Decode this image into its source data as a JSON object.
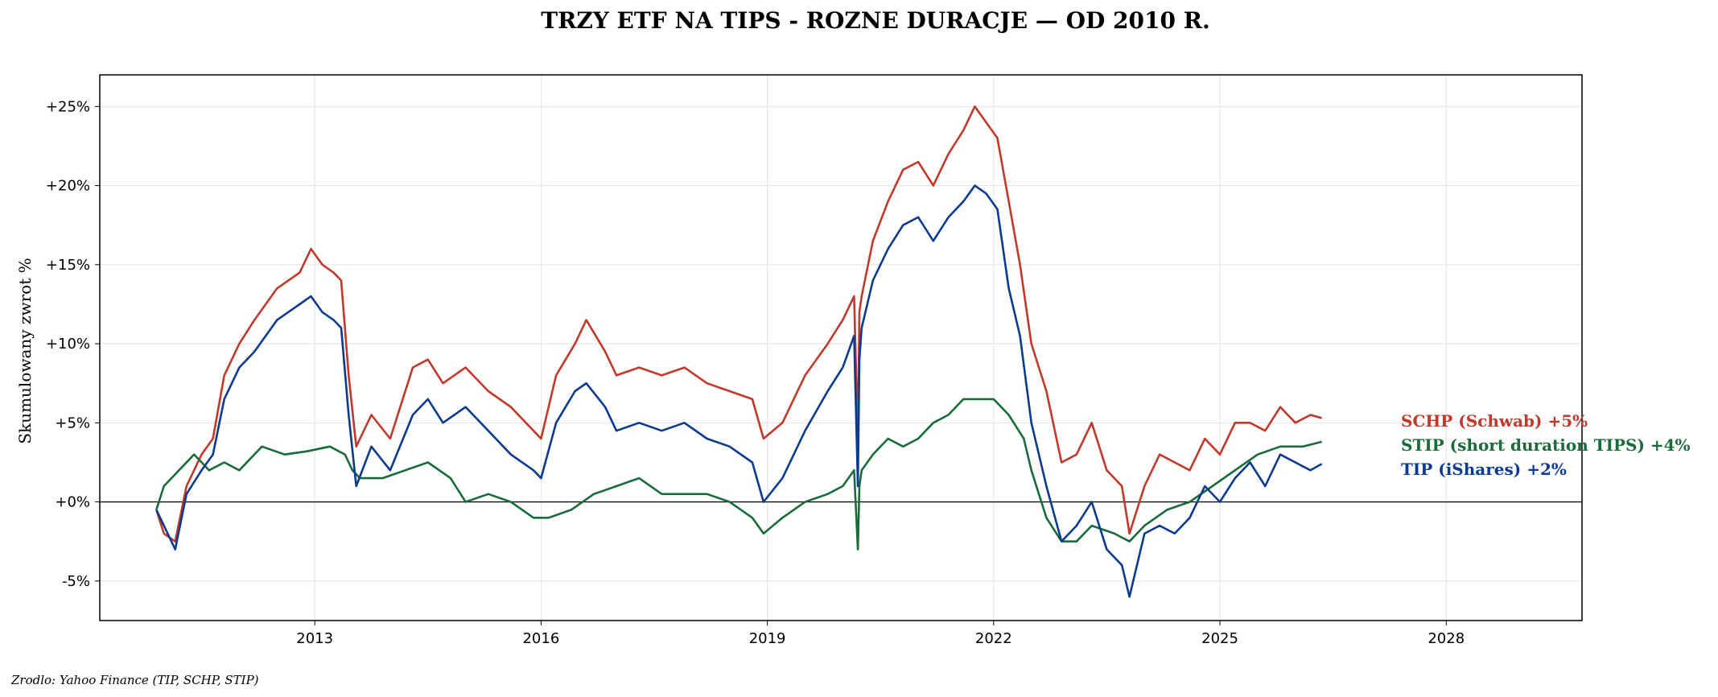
{
  "chart_data": {
    "type": "line",
    "title": "TRZY ETF NA TIPS - ROZNE DURACJE — OD 2010 R.",
    "ylabel": "Skumulowany zwrot %",
    "xlabel": "",
    "source": "Zrodlo: Yahoo Finance (TIP, SCHP, STIP)",
    "xlim": [
      2010.15,
      2029.8
    ],
    "ylim": [
      -7.5,
      27
    ],
    "x_ticks": [
      2013,
      2016,
      2019,
      2022,
      2025,
      2028
    ],
    "x_tick_labels": [
      "2013",
      "2016",
      "2019",
      "2022",
      "2025",
      "2028"
    ],
    "y_ticks": [
      -5,
      0,
      5,
      10,
      15,
      20,
      25
    ],
    "y_tick_labels": [
      "-5%",
      "+0%",
      "+5%",
      "+10%",
      "+15%",
      "+20%",
      "+25%"
    ],
    "grid": true,
    "zero_line": true,
    "legend_position": "right",
    "series": [
      {
        "name": "SCHP (Schwab)",
        "label": "SCHP (Schwab)  +5%",
        "color": "#C0392B",
        "x": [
          2010.9,
          2011.0,
          2011.15,
          2011.3,
          2011.5,
          2011.65,
          2011.8,
          2012.0,
          2012.2,
          2012.5,
          2012.8,
          2012.95,
          2013.1,
          2013.25,
          2013.35,
          2013.45,
          2013.55,
          2013.75,
          2014.0,
          2014.3,
          2014.5,
          2014.7,
          2015.0,
          2015.3,
          2015.6,
          2015.9,
          2016.0,
          2016.2,
          2016.45,
          2016.6,
          2016.85,
          2017.0,
          2017.3,
          2017.6,
          2017.9,
          2018.2,
          2018.5,
          2018.8,
          2018.95,
          2019.2,
          2019.5,
          2019.8,
          2020.0,
          2020.15,
          2020.2,
          2020.22,
          2020.25,
          2020.4,
          2020.6,
          2020.8,
          2021.0,
          2021.2,
          2021.4,
          2021.6,
          2021.75,
          2021.9,
          2022.05,
          2022.2,
          2022.35,
          2022.5,
          2022.7,
          2022.9,
          2023.1,
          2023.3,
          2023.5,
          2023.7,
          2023.8,
          2024.0,
          2024.2,
          2024.4,
          2024.6,
          2024.8,
          2025.0,
          2025.2,
          2025.4,
          2025.6,
          2025.8,
          2026.0,
          2026.2,
          2026.35
        ],
        "values": [
          -0.5,
          -2.0,
          -2.5,
          1.0,
          3.0,
          4.0,
          8.0,
          10.0,
          11.5,
          13.5,
          14.5,
          16.0,
          15.0,
          14.5,
          14.0,
          8.0,
          3.5,
          5.5,
          4.0,
          8.5,
          9.0,
          7.5,
          8.5,
          7.0,
          6.0,
          4.5,
          4.0,
          8.0,
          10.0,
          11.5,
          9.5,
          8.0,
          8.5,
          8.0,
          8.5,
          7.5,
          7.0,
          6.5,
          4.0,
          5.0,
          8.0,
          10.0,
          11.5,
          13.0,
          4.0,
          12.0,
          13.0,
          16.5,
          19.0,
          21.0,
          21.5,
          20.0,
          22.0,
          23.5,
          25.0,
          24.0,
          23.0,
          19.0,
          15.0,
          10.0,
          7.0,
          2.5,
          3.0,
          5.0,
          2.0,
          1.0,
          -2.0,
          1.0,
          3.0,
          2.5,
          2.0,
          4.0,
          3.0,
          5.0,
          5.0,
          4.5,
          6.0,
          5.0,
          5.5,
          5.3
        ]
      },
      {
        "name": "STIP (short duration TIPS)",
        "label": "STIP (short duration TIPS)  +4%",
        "color": "#1A6B3A",
        "x": [
          2010.9,
          2011.0,
          2011.2,
          2011.4,
          2011.6,
          2011.8,
          2012.0,
          2012.3,
          2012.6,
          2012.9,
          2013.2,
          2013.4,
          2013.5,
          2013.6,
          2013.9,
          2014.2,
          2014.5,
          2014.8,
          2015.0,
          2015.3,
          2015.6,
          2015.9,
          2016.1,
          2016.4,
          2016.7,
          2017.0,
          2017.3,
          2017.6,
          2017.9,
          2018.2,
          2018.5,
          2018.8,
          2018.95,
          2019.2,
          2019.5,
          2019.8,
          2020.0,
          2020.15,
          2020.2,
          2020.22,
          2020.25,
          2020.4,
          2020.6,
          2020.8,
          2021.0,
          2021.2,
          2021.4,
          2021.6,
          2021.8,
          2022.0,
          2022.2,
          2022.4,
          2022.5,
          2022.7,
          2022.9,
          2023.1,
          2023.3,
          2023.6,
          2023.8,
          2024.0,
          2024.3,
          2024.6,
          2024.9,
          2025.2,
          2025.5,
          2025.8,
          2026.1,
          2026.35
        ],
        "values": [
          -0.5,
          1.0,
          2.0,
          3.0,
          2.0,
          2.5,
          2.0,
          3.5,
          3.0,
          3.2,
          3.5,
          3.0,
          2.0,
          1.5,
          1.5,
          2.0,
          2.5,
          1.5,
          0.0,
          0.5,
          0.0,
          -1.0,
          -1.0,
          -0.5,
          0.5,
          1.0,
          1.5,
          0.5,
          0.5,
          0.5,
          0.0,
          -1.0,
          -2.0,
          -1.0,
          0.0,
          0.5,
          1.0,
          2.0,
          -3.0,
          1.0,
          2.0,
          3.0,
          4.0,
          3.5,
          4.0,
          5.0,
          5.5,
          6.5,
          6.5,
          6.5,
          5.5,
          4.0,
          2.0,
          -1.0,
          -2.5,
          -2.5,
          -1.5,
          -2.0,
          -2.5,
          -1.5,
          -0.5,
          0.0,
          1.0,
          2.0,
          3.0,
          3.5,
          3.5,
          3.8
        ]
      },
      {
        "name": "TIP (iShares)",
        "label": "TIP (iShares)  +2%",
        "color": "#0B3A8E",
        "x": [
          2010.9,
          2011.0,
          2011.15,
          2011.3,
          2011.5,
          2011.65,
          2011.8,
          2012.0,
          2012.2,
          2012.5,
          2012.8,
          2012.95,
          2013.1,
          2013.25,
          2013.35,
          2013.45,
          2013.55,
          2013.75,
          2014.0,
          2014.3,
          2014.5,
          2014.7,
          2015.0,
          2015.3,
          2015.6,
          2015.9,
          2016.0,
          2016.2,
          2016.45,
          2016.6,
          2016.85,
          2017.0,
          2017.3,
          2017.6,
          2017.9,
          2018.2,
          2018.5,
          2018.8,
          2018.95,
          2019.2,
          2019.5,
          2019.8,
          2020.0,
          2020.15,
          2020.2,
          2020.22,
          2020.25,
          2020.4,
          2020.6,
          2020.8,
          2021.0,
          2021.2,
          2021.4,
          2021.6,
          2021.75,
          2021.9,
          2022.05,
          2022.2,
          2022.35,
          2022.5,
          2022.7,
          2022.9,
          2023.1,
          2023.3,
          2023.5,
          2023.7,
          2023.8,
          2024.0,
          2024.2,
          2024.4,
          2024.6,
          2024.8,
          2025.0,
          2025.2,
          2025.4,
          2025.6,
          2025.8,
          2026.0,
          2026.2,
          2026.35
        ],
        "values": [
          -0.5,
          -1.5,
          -3.0,
          0.5,
          2.0,
          3.0,
          6.5,
          8.5,
          9.5,
          11.5,
          12.5,
          13.0,
          12.0,
          11.5,
          11.0,
          5.5,
          1.0,
          3.5,
          2.0,
          5.5,
          6.5,
          5.0,
          6.0,
          4.5,
          3.0,
          2.0,
          1.5,
          5.0,
          7.0,
          7.5,
          6.0,
          4.5,
          5.0,
          4.5,
          5.0,
          4.0,
          3.5,
          2.5,
          0.0,
          1.5,
          4.5,
          7.0,
          8.5,
          10.5,
          1.0,
          9.0,
          11.0,
          14.0,
          16.0,
          17.5,
          18.0,
          16.5,
          18.0,
          19.0,
          20.0,
          19.5,
          18.5,
          13.5,
          10.5,
          5.0,
          1.0,
          -2.5,
          -1.5,
          0.0,
          -3.0,
          -4.0,
          -6.0,
          -2.0,
          -1.5,
          -2.0,
          -1.0,
          1.0,
          0.0,
          1.5,
          2.5,
          1.0,
          3.0,
          2.5,
          2.0,
          2.4
        ]
      }
    ]
  }
}
